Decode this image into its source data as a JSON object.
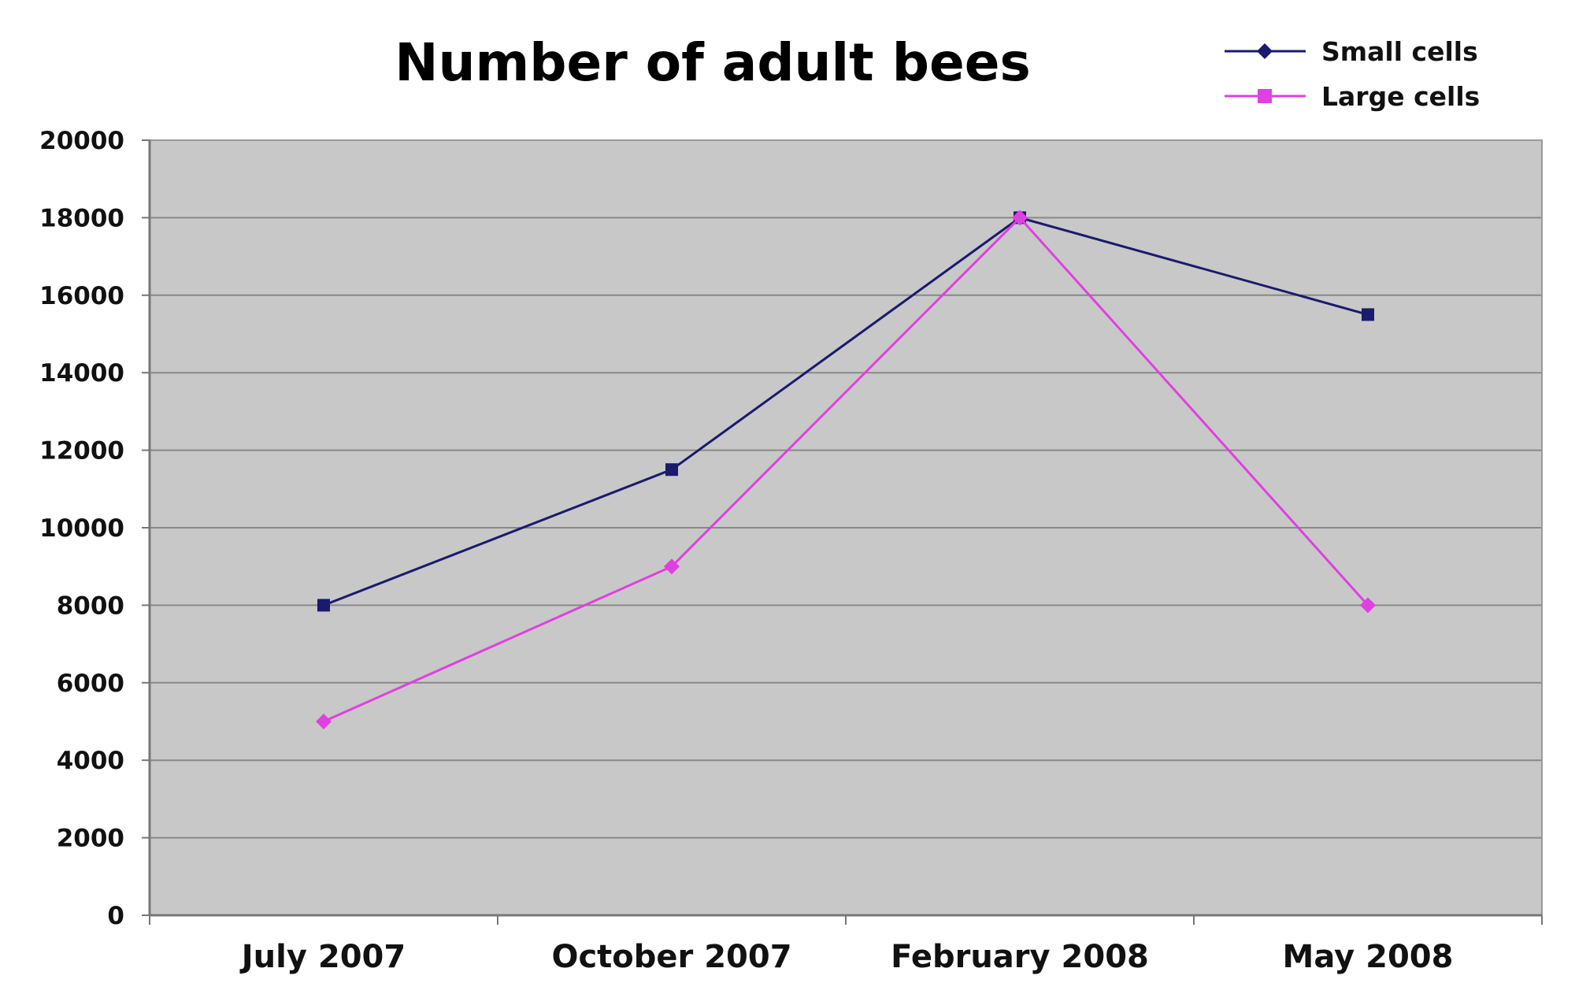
{
  "chart_data": {
    "type": "line",
    "title": "Number of adult bees",
    "xlabel": "",
    "ylabel": "",
    "categories": [
      "July 2007",
      "October 2007",
      "February 2008",
      "May 2008"
    ],
    "ylim": [
      0,
      20000
    ],
    "yticks": [
      "0",
      "2000",
      "4000",
      "6000",
      "8000",
      "10000",
      "12000",
      "14000",
      "16000",
      "18000",
      "20000"
    ],
    "grid": true,
    "legend_position": "top-right",
    "series": [
      {
        "name": "Small cells",
        "color": "#1a1a6e",
        "marker": "square",
        "values": [
          8000,
          11500,
          18000,
          15500
        ]
      },
      {
        "name": "Large cells",
        "color": "#e040e0",
        "marker": "diamond",
        "values": [
          5000,
          9000,
          18000,
          8000
        ]
      }
    ],
    "plot_background": "#c8c8c8",
    "gridline_color": "#888888"
  }
}
